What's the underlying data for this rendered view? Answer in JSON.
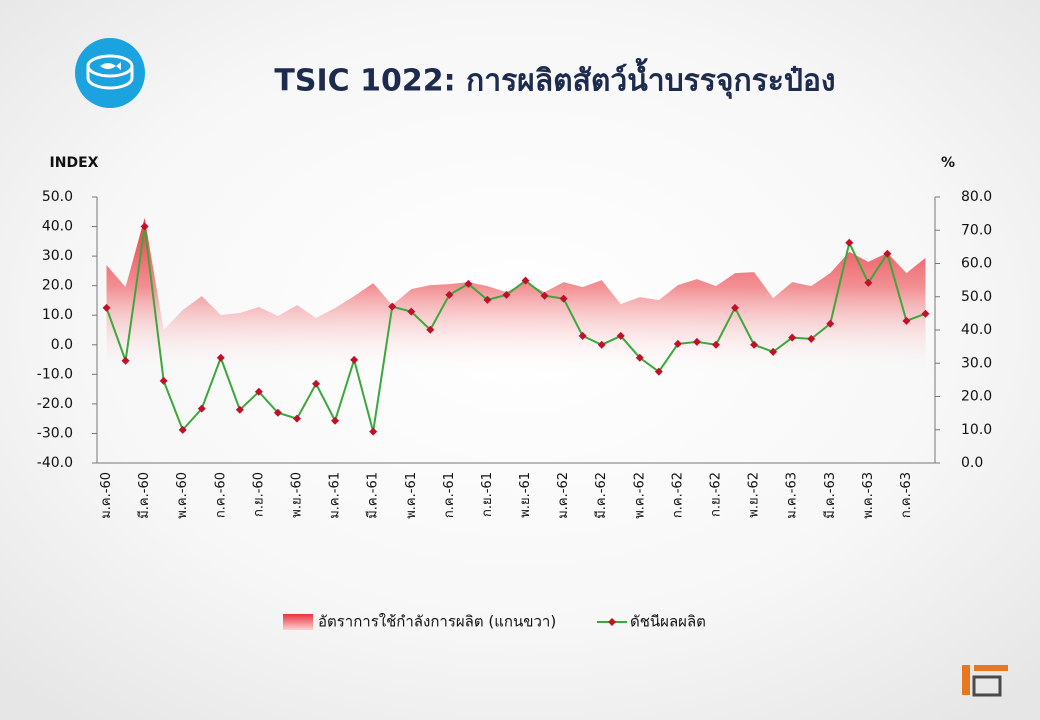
{
  "chart_data": {
    "type": "combo",
    "title": "TSIC 1022: การผลิตสัตว์น้ำบรรจุกระป๋อง",
    "y_label": "INDEX",
    "y2_label": "%",
    "categories": [
      "ม.ค.-60",
      null,
      "มี.ค.-60",
      null,
      "พ.ค.-60",
      null,
      "ก.ค.-60",
      null,
      "ก.ย.-60",
      null,
      "พ.ย.-60",
      null,
      "ม.ค.-61",
      null,
      "มี.ค.-61",
      null,
      "พ.ค.-61",
      null,
      "ก.ค.-61",
      null,
      "ก.ย.-61",
      null,
      "พ.ย.-61",
      null,
      "ม.ค.-62",
      null,
      "มี.ค.-62",
      null,
      "พ.ค.-62",
      null,
      "ก.ค.-62",
      null,
      "ก.ย.-62",
      null,
      "พ.ย.-62",
      null,
      "ม.ค.-63",
      null,
      "มี.ค.-63",
      null,
      "พ.ค.-63",
      null,
      "ก.ค.-63",
      null
    ],
    "series": [
      {
        "name": "อัตราการใช้กำลังการผลิต (แกนขวา)",
        "type": "area",
        "axis": "y2",
        "color": "#e8323c",
        "values": [
          59.5,
          52.9,
          73.7,
          40,
          46,
          50.2,
          44.5,
          45.1,
          46.9,
          44.2,
          47.5,
          43.6,
          46.6,
          50.2,
          54.1,
          47.5,
          52.3,
          53.5,
          53.8,
          54.4,
          53.2,
          51.4,
          54.4,
          51.4,
          54.4,
          52.9,
          55,
          47.8,
          49.9,
          49,
          53.5,
          55.3,
          53.2,
          57.1,
          57.4,
          49.6,
          54.4,
          53.2,
          57.1,
          63.5,
          60.5,
          63.2,
          57.1,
          61.7
        ]
      },
      {
        "name": "ดัชนีผลผลิต",
        "type": "line",
        "color": "#3aa83a",
        "marker_color": "#c0102a",
        "values": [
          12.5,
          -5.4,
          40,
          -12.2,
          -28.8,
          -21.6,
          -4.4,
          -22,
          -15.9,
          -23,
          -25,
          -13.2,
          -25.7,
          -5.1,
          -29.4,
          12.9,
          11.2,
          5.1,
          16.9,
          20.6,
          15.2,
          16.9,
          21.7,
          16.6,
          15.6,
          3.0,
          0,
          3.0,
          -4.4,
          -9.1,
          0.3,
          1.0,
          0,
          12.5,
          0,
          -2.4,
          2.4,
          2.0,
          7.1,
          34.5,
          21.0,
          30.8,
          8.1,
          10.5
        ]
      }
    ],
    "ylim": [
      -40,
      50
    ],
    "yticks": [
      {
        "value": -40,
        "label": "-40.0"
      },
      {
        "value": -30,
        "label": "-30.0"
      },
      {
        "value": -20,
        "label": "-20.0"
      },
      {
        "value": -10,
        "label": "-10.0"
      },
      {
        "value": 0,
        "label": "0.0"
      },
      {
        "value": 10,
        "label": "10.0"
      },
      {
        "value": 20,
        "label": "20.0"
      },
      {
        "value": 30,
        "label": "30.0"
      },
      {
        "value": 40,
        "label": "40.0"
      },
      {
        "value": 50,
        "label": "50.0"
      }
    ],
    "y2lim": [
      0,
      80
    ],
    "y2ticks": [
      {
        "value": 0,
        "label": "0.0"
      },
      {
        "value": 10,
        "label": "10.0"
      },
      {
        "value": 20,
        "label": "20.0"
      },
      {
        "value": 30,
        "label": "30.0"
      },
      {
        "value": 40,
        "label": "40.0"
      },
      {
        "value": 50,
        "label": "50.0"
      },
      {
        "value": 60,
        "label": "60.0"
      },
      {
        "value": 70,
        "label": "70.0"
      },
      {
        "value": 80,
        "label": "80.0"
      }
    ],
    "grid": false,
    "legend": "bottom"
  }
}
